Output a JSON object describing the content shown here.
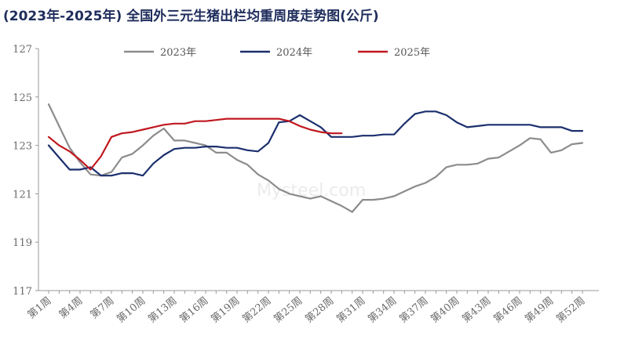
{
  "title": "(2023年-2025年) 全国外三元生猪出栏均重周度走势图(公斤)",
  "watermark": "Mysteel.com",
  "chart_data": {
    "type": "line",
    "title": "(2023年-2025年) 全国外三元生猪出栏均重周度走势图(公斤)",
    "ylim": [
      117,
      127
    ],
    "yticks": [
      117,
      119,
      121,
      123,
      125,
      127
    ],
    "x_tick_labels": [
      "第1周",
      "第4周",
      "第7周",
      "第10周",
      "第13周",
      "第16周",
      "第19周",
      "第22周",
      "第25周",
      "第28周",
      "第31周",
      "第34周",
      "第37周",
      "第40周",
      "第43周",
      "第46周",
      "第49周",
      "第52周"
    ],
    "x_tick_weeks": [
      1,
      4,
      7,
      10,
      13,
      16,
      19,
      22,
      25,
      28,
      31,
      34,
      37,
      40,
      43,
      46,
      49,
      52
    ],
    "grid": false,
    "legend_position": "top",
    "series": [
      {
        "name": "2023年",
        "color": "#8c8c8c",
        "weeks": [
          1,
          2,
          3,
          4,
          5,
          6,
          7,
          8,
          9,
          10,
          11,
          12,
          13,
          14,
          15,
          16,
          17,
          18,
          19,
          20,
          21,
          22,
          23,
          24,
          25,
          26,
          27,
          28,
          29,
          30,
          31,
          32,
          33,
          34,
          35,
          36,
          37,
          38,
          39,
          40,
          41,
          42,
          43,
          44,
          45,
          46,
          47,
          48,
          49,
          50,
          51,
          52
        ],
        "values": [
          124.7,
          123.8,
          122.9,
          122.3,
          121.8,
          121.75,
          121.9,
          122.5,
          122.65,
          123.0,
          123.4,
          123.7,
          123.2,
          123.2,
          123.1,
          123.0,
          122.7,
          122.7,
          122.4,
          122.2,
          121.8,
          121.55,
          121.2,
          121.0,
          120.9,
          120.8,
          120.9,
          120.7,
          120.5,
          120.25,
          120.75,
          120.75,
          120.8,
          120.9,
          121.1,
          121.3,
          121.45,
          121.7,
          122.1,
          122.2,
          122.2,
          122.25,
          122.45,
          122.5,
          122.75,
          123.0,
          123.3,
          123.25,
          122.7,
          122.8,
          123.05,
          123.1
        ]
      },
      {
        "name": "2024年",
        "color": "#1b2f6e",
        "weeks": [
          1,
          2,
          3,
          4,
          5,
          6,
          7,
          8,
          9,
          10,
          11,
          12,
          13,
          14,
          15,
          16,
          17,
          18,
          19,
          20,
          21,
          22,
          23,
          24,
          25,
          26,
          27,
          28,
          29,
          30,
          31,
          32,
          33,
          34,
          35,
          36,
          37,
          38,
          39,
          40,
          41,
          42,
          43,
          44,
          45,
          46,
          47,
          48,
          49,
          50,
          51,
          52
        ],
        "values": [
          123.0,
          122.5,
          122.0,
          122.0,
          122.1,
          121.75,
          121.75,
          121.85,
          121.85,
          121.75,
          122.25,
          122.6,
          122.85,
          122.9,
          122.9,
          122.95,
          122.95,
          122.9,
          122.9,
          122.8,
          122.75,
          123.1,
          123.95,
          124.0,
          124.25,
          124.0,
          123.75,
          123.35,
          123.35,
          123.35,
          123.4,
          123.4,
          123.45,
          123.45,
          123.9,
          124.3,
          124.4,
          124.4,
          124.25,
          123.95,
          123.75,
          123.8,
          123.85,
          123.85,
          123.85,
          123.85,
          123.85,
          123.75,
          123.75,
          123.75,
          123.6,
          123.6
        ]
      },
      {
        "name": "2025年",
        "color": "#c0181f",
        "weeks": [
          1,
          2,
          3,
          4,
          5,
          6,
          7,
          8,
          9,
          10,
          11,
          12,
          13,
          14,
          15,
          16,
          17,
          18,
          19,
          20,
          21,
          22,
          23,
          24,
          25,
          26,
          27,
          28,
          29
        ],
        "values": [
          123.35,
          123.0,
          122.75,
          122.4,
          122.0,
          122.55,
          123.35,
          123.5,
          123.55,
          123.65,
          123.75,
          123.85,
          123.9,
          123.9,
          124.0,
          124.0,
          124.05,
          124.1,
          124.1,
          124.1,
          124.1,
          124.1,
          124.1,
          124.0,
          123.8,
          123.65,
          123.55,
          123.5,
          123.5
        ]
      }
    ]
  }
}
